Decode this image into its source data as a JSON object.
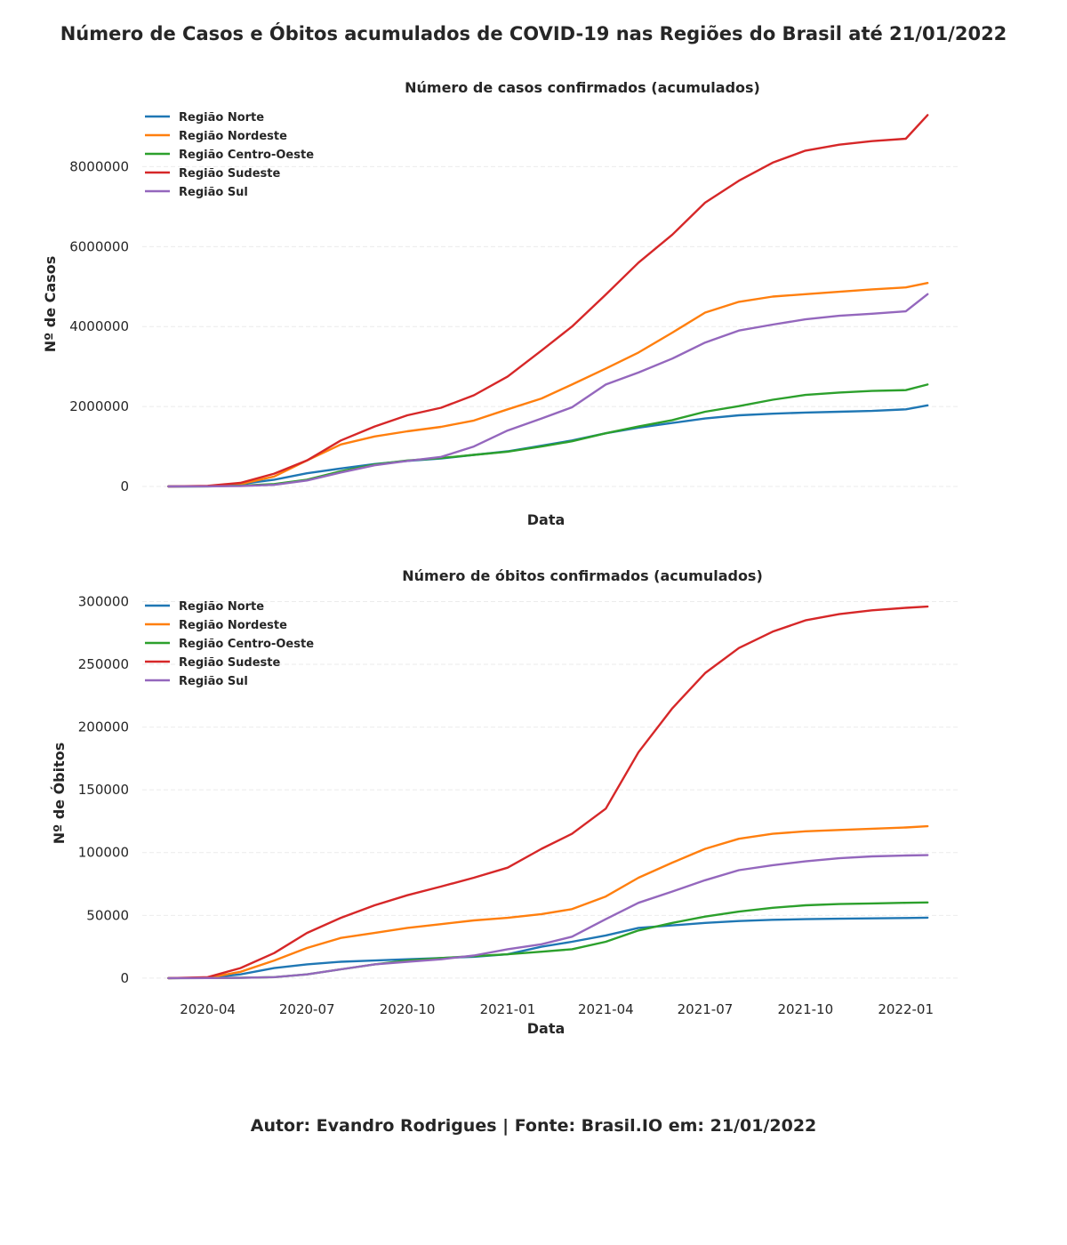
{
  "suptitle": "Número de Casos e Óbitos acumulados de COVID-19 nas Regiões do Brasil até 21/01/2022",
  "footer": "Autor: Evandro Rodrigues | Fonte: Brasil.IO em: 21/01/2022",
  "chart_data": [
    {
      "type": "line",
      "title": "Número de casos confirmados (acumulados)",
      "xlabel": "Data",
      "ylabel": "Nº de Casos",
      "xlim": [
        "2020-02-01",
        "2022-02-20"
      ],
      "ylim": [
        -400000,
        9500000
      ],
      "y_ticks": [
        0,
        2000000,
        4000000,
        6000000,
        8000000
      ],
      "y_tick_labels": [
        "0",
        "2000000",
        "4000000",
        "6000000",
        "8000000"
      ],
      "x_tick_labels": [],
      "grid": true,
      "legend_position": "top-left",
      "x": [
        "2020-02-25",
        "2020-04-01",
        "2020-05-01",
        "2020-06-01",
        "2020-07-01",
        "2020-08-01",
        "2020-09-01",
        "2020-10-01",
        "2020-11-01",
        "2020-12-01",
        "2021-01-01",
        "2021-02-01",
        "2021-03-01",
        "2021-04-01",
        "2021-05-01",
        "2021-06-01",
        "2021-07-01",
        "2021-08-01",
        "2021-09-01",
        "2021-10-01",
        "2021-11-01",
        "2021-12-01",
        "2022-01-01",
        "2022-01-21"
      ],
      "series": [
        {
          "name": "Região Norte",
          "color": "#1f77b4",
          "values": [
            0,
            5000,
            60000,
            170000,
            330000,
            450000,
            560000,
            640000,
            700000,
            790000,
            880000,
            1020000,
            1150000,
            1330000,
            1470000,
            1590000,
            1700000,
            1780000,
            1820000,
            1850000,
            1870000,
            1890000,
            1930000,
            2030000
          ]
        },
        {
          "name": "Região Nordeste",
          "color": "#ff7f0e",
          "values": [
            0,
            10000,
            60000,
            250000,
            650000,
            1050000,
            1250000,
            1380000,
            1490000,
            1650000,
            1930000,
            2200000,
            2550000,
            2950000,
            3350000,
            3850000,
            4350000,
            4620000,
            4750000,
            4810000,
            4870000,
            4930000,
            4980000,
            5090000
          ]
        },
        {
          "name": "Região Centro-Oeste",
          "color": "#2ca02c",
          "values": [
            0,
            3000,
            20000,
            60000,
            170000,
            380000,
            550000,
            650000,
            710000,
            790000,
            870000,
            1000000,
            1130000,
            1330000,
            1500000,
            1660000,
            1870000,
            2010000,
            2170000,
            2290000,
            2350000,
            2390000,
            2410000,
            2550000
          ]
        },
        {
          "name": "Região Sudeste",
          "color": "#d62728",
          "values": [
            0,
            15000,
            90000,
            320000,
            650000,
            1150000,
            1500000,
            1780000,
            1970000,
            2280000,
            2750000,
            3400000,
            4000000,
            4800000,
            5600000,
            6300000,
            7100000,
            7650000,
            8100000,
            8400000,
            8550000,
            8640000,
            8700000,
            9290000
          ]
        },
        {
          "name": "Região Sul",
          "color": "#9467bd",
          "values": [
            0,
            3000,
            12000,
            40000,
            150000,
            350000,
            530000,
            640000,
            740000,
            1000000,
            1400000,
            1700000,
            1980000,
            2550000,
            2850000,
            3200000,
            3600000,
            3900000,
            4050000,
            4180000,
            4270000,
            4320000,
            4380000,
            4810000
          ]
        }
      ]
    },
    {
      "type": "line",
      "title": "Número de óbitos confirmados (acumulados)",
      "xlabel": "Data",
      "ylabel": "Nº de Óbitos",
      "xlim": [
        "2020-02-01",
        "2022-02-20"
      ],
      "ylim": [
        -10000,
        306000
      ],
      "y_ticks": [
        0,
        50000,
        100000,
        150000,
        200000,
        250000,
        300000
      ],
      "y_tick_labels": [
        "0",
        "50000",
        "100000",
        "150000",
        "200000",
        "250000",
        "300000"
      ],
      "x_tick_values": [
        "2020-04-01",
        "2020-07-01",
        "2020-10-01",
        "2021-01-01",
        "2021-04-01",
        "2021-07-01",
        "2021-10-01",
        "2022-01-01"
      ],
      "x_tick_labels": [
        "2020-04",
        "2020-07",
        "2020-10",
        "2021-01",
        "2021-04",
        "2021-07",
        "2021-10",
        "2022-01"
      ],
      "grid": true,
      "legend_position": "top-left",
      "x": [
        "2020-02-25",
        "2020-04-01",
        "2020-05-01",
        "2020-06-01",
        "2020-07-01",
        "2020-08-01",
        "2020-09-01",
        "2020-10-01",
        "2020-11-01",
        "2020-12-01",
        "2021-01-01",
        "2021-02-01",
        "2021-03-01",
        "2021-04-01",
        "2021-05-01",
        "2021-06-01",
        "2021-07-01",
        "2021-08-01",
        "2021-09-01",
        "2021-10-01",
        "2021-11-01",
        "2021-12-01",
        "2022-01-01",
        "2022-01-21"
      ],
      "series": [
        {
          "name": "Região Norte",
          "color": "#1f77b4",
          "values": [
            0,
            200,
            3000,
            8000,
            11000,
            13000,
            14000,
            15000,
            16000,
            17000,
            19000,
            25000,
            29000,
            34000,
            40000,
            42000,
            44000,
            45500,
            46500,
            47000,
            47300,
            47600,
            47900,
            48200
          ]
        },
        {
          "name": "Região Nordeste",
          "color": "#ff7f0e",
          "values": [
            0,
            300,
            5000,
            14000,
            24000,
            32000,
            36000,
            40000,
            43000,
            46000,
            48000,
            51000,
            55000,
            65000,
            80000,
            92000,
            103000,
            111000,
            115000,
            117000,
            118000,
            119000,
            120000,
            121000
          ]
        },
        {
          "name": "Região Centro-Oeste",
          "color": "#2ca02c",
          "values": [
            0,
            50,
            300,
            800,
            3000,
            7000,
            11000,
            14000,
            16000,
            17500,
            19000,
            21000,
            23000,
            29000,
            38000,
            44000,
            49000,
            53000,
            56000,
            58000,
            59000,
            59500,
            60000,
            60300
          ]
        },
        {
          "name": "Região Sudeste",
          "color": "#d62728",
          "values": [
            0,
            800,
            8000,
            20000,
            36000,
            48000,
            58000,
            66000,
            73000,
            80000,
            88000,
            103000,
            115000,
            135000,
            180000,
            215000,
            243000,
            263000,
            276000,
            285000,
            290000,
            293000,
            295000,
            296000
          ]
        },
        {
          "name": "Região Sul",
          "color": "#9467bd",
          "values": [
            0,
            50,
            200,
            800,
            3000,
            7000,
            11000,
            13000,
            15000,
            18000,
            23000,
            27000,
            33000,
            47000,
            60000,
            69000,
            78000,
            86000,
            90000,
            93000,
            95500,
            97000,
            97700,
            98000
          ]
        }
      ]
    }
  ]
}
